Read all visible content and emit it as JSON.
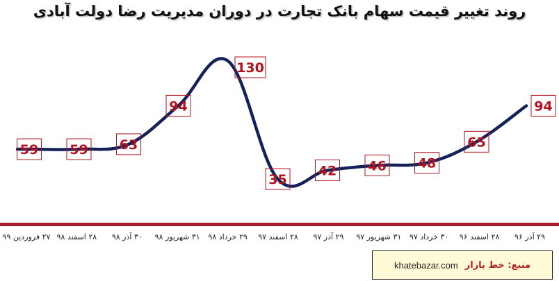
{
  "title": "روند تغییر قیمت سهام بانک تجارت در دوران مدیریت رضا دولت آبادی",
  "source": {
    "label": "منبع: خط بازار",
    "site": "khatebazar.com"
  },
  "colors": {
    "line": "#13235a",
    "label_text": "#b2121e",
    "label_border": "#b2121e",
    "axis_bar": "#a51d28",
    "box_bg": "#fefbd6"
  },
  "chart_data": {
    "type": "line",
    "title": "روند تغییر قیمت سهام بانک تجارت در دوران مدیریت رضا دولت آبادی",
    "xlabel": "",
    "ylabel": "",
    "categories": [
      "۲۹ آذر ۹۶",
      "۲۸ اسفند ۹۶",
      "۳۰ خرداد ۹۷",
      "۳۱ شهریور ۹۷",
      "۲۹ آذر ۹۷",
      "۲۸ اسفند ۹۷",
      "۲۹ خرداد ۹۸",
      "۳۱ شهریور ۹۸",
      "۳۰ آذر ۹۸",
      "۲۸ اسفند ۹۸",
      "۲۷ فروردین ۹۹"
    ],
    "values": [
      59,
      59,
      63,
      94,
      130,
      35,
      42,
      46,
      48,
      65,
      94
    ],
    "data_labels": [
      "59",
      "59",
      "63",
      "94",
      "130",
      "35",
      "42",
      "46",
      "48",
      "65",
      "94"
    ],
    "ylim": [
      25,
      140
    ],
    "grid": false,
    "x_direction": "right-to-left"
  }
}
